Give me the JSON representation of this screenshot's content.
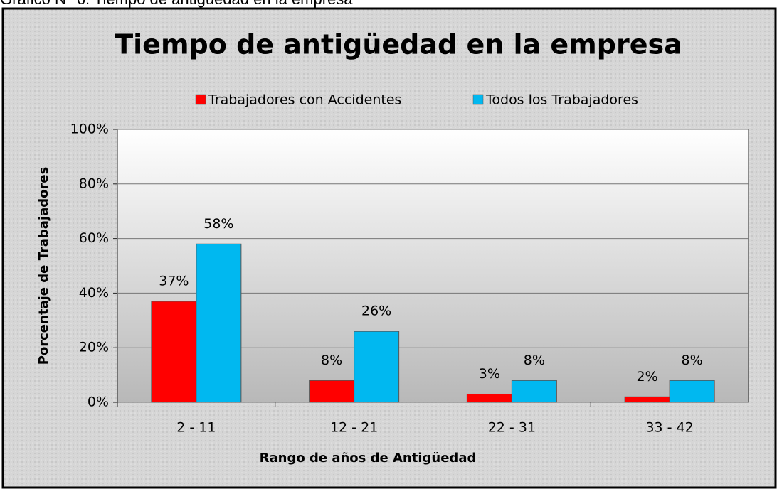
{
  "caption": "Gráfico N° 6: Tiempo de antigüedad en la empresa",
  "chart_data": {
    "type": "bar",
    "title": "Tiempo de antigüedad en la empresa",
    "x_label": "Rango de años de Antigüedad",
    "y_label": "Porcentaje de Trabajadores",
    "categories": [
      "2  -  11",
      "12  -  21",
      "22  -  31",
      "33  -  42"
    ],
    "series": [
      {
        "name": "Trabajadores con Accidentes",
        "color": "#ff0000",
        "values": [
          37,
          8,
          3,
          2
        ],
        "value_labels": [
          "37%",
          "8%",
          "3%",
          "2%"
        ]
      },
      {
        "name": "Todos los Trabajadores",
        "color": "#00b8f0",
        "values": [
          58,
          26,
          8,
          8
        ],
        "value_labels": [
          "58%",
          "26%",
          "8%",
          "8%"
        ]
      }
    ],
    "ylim": [
      0,
      100
    ],
    "yticks": [
      {
        "value": 0,
        "label": "0%"
      },
      {
        "value": 20,
        "label": "20%"
      },
      {
        "value": 40,
        "label": "40%"
      },
      {
        "value": 60,
        "label": "60%"
      },
      {
        "value": 80,
        "label": "80%"
      },
      {
        "value": 100,
        "label": "100%"
      }
    ],
    "grid": true,
    "legend": "top"
  }
}
